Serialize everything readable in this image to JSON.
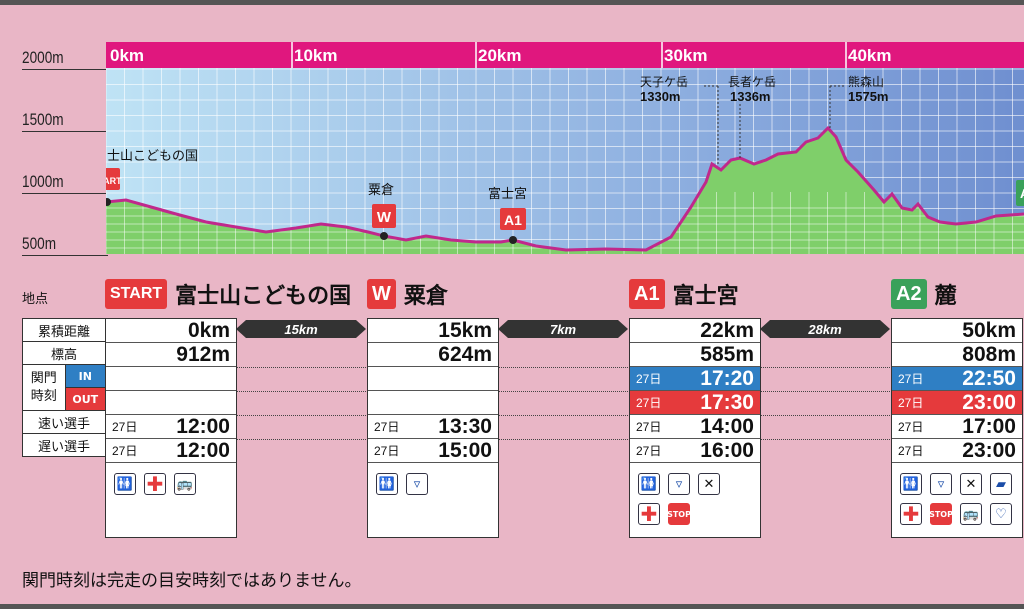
{
  "y_axis": [
    "2000m",
    "1500m",
    "1000m",
    "500m"
  ],
  "km_labels": [
    "0km",
    "10km",
    "20km",
    "30km",
    "40km"
  ],
  "peaks": [
    {
      "name": "天子ケ岳",
      "elev": "1330m"
    },
    {
      "name": "長者ケ岳",
      "elev": "1336m"
    },
    {
      "name": "熊森山",
      "elev": "1575m"
    }
  ],
  "profile_sites": [
    {
      "name": "富士山こどもの国",
      "badge": "START"
    },
    {
      "name": "粟倉",
      "badge": "W"
    },
    {
      "name": "富士宮",
      "badge": "A1"
    },
    {
      "name": "",
      "badge": "A"
    }
  ],
  "table": {
    "header_label": "地点",
    "row_labels": {
      "distance": "累積距離",
      "elevation": "標高",
      "gate1": "関門",
      "gate2": "時刻",
      "in": "IN",
      "out": "OUT",
      "fast": "速い選手",
      "slow": "遅い選手"
    },
    "points": [
      {
        "badge": "START",
        "name": "富士山こどもの国",
        "distance": "0km",
        "elevation": "912m",
        "in_day": "",
        "in_time": "",
        "out_day": "",
        "out_time": "",
        "fast_day": "27日",
        "fast": "12:00",
        "slow_day": "27日",
        "slow": "12:00",
        "icons": [
          "toilet-icon",
          "first-aid-icon",
          "bus-icon"
        ]
      },
      {
        "badge": "W",
        "name": "粟倉",
        "distance": "15km",
        "elevation": "624m",
        "in_day": "",
        "in_time": "",
        "out_day": "",
        "out_time": "",
        "fast_day": "27日",
        "fast": "13:30",
        "slow_day": "27日",
        "slow": "15:00",
        "icons": [
          "toilet-icon",
          "water-cup-icon"
        ]
      },
      {
        "badge": "A1",
        "name": "富士宮",
        "distance": "22km",
        "elevation": "585m",
        "in_day": "27日",
        "in_time": "17:20",
        "out_day": "27日",
        "out_time": "17:30",
        "fast_day": "27日",
        "fast": "14:00",
        "slow_day": "27日",
        "slow": "16:00",
        "icons": [
          "toilet-icon",
          "water-cup-icon",
          "food-icon",
          "first-aid-icon",
          "stop-icon"
        ]
      },
      {
        "badge": "A2",
        "name": "麓",
        "distance": "50km",
        "elevation": "808m",
        "in_day": "27日",
        "in_time": "22:50",
        "out_day": "27日",
        "out_time": "23:00",
        "fast_day": "27日",
        "fast": "17:00",
        "slow_day": "27日",
        "slow": "23:00",
        "icons": [
          "toilet-icon",
          "water-cup-icon",
          "food-icon",
          "sleep-icon",
          "first-aid-icon",
          "stop-icon",
          "bus-icon",
          "handshake-icon"
        ]
      }
    ],
    "segments": [
      "15km",
      "7km",
      "28km"
    ]
  },
  "stop_label": "STOP",
  "note": "関門時刻は完走の目安時刻ではありません。",
  "colors": {
    "background": "#e9b6c6",
    "axis_band": "#e0177e",
    "profile_line": "#c0288c",
    "fill": "#7fcf6a",
    "in": "#2f7fc4",
    "out": "#e53a3c",
    "green_badge": "#3aa15a"
  }
}
